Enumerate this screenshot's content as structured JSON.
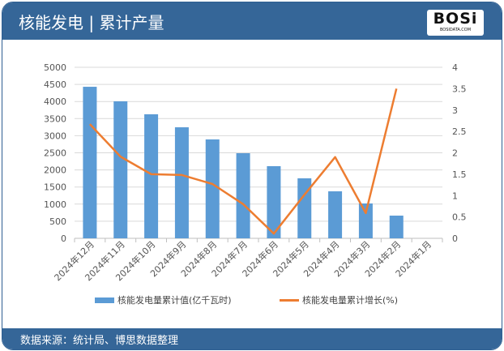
{
  "header": {
    "title": "核能发电 | 累计产量",
    "logo_text": "BOSi",
    "logo_subtext": "BOSIDATA.COM"
  },
  "footer": {
    "source": "数据来源：统计局、博思数据整理"
  },
  "colors": {
    "bar": "#5b9bd5",
    "line": "#ed7d31",
    "header": "#356698"
  },
  "chart_data": {
    "type": "bar+line",
    "categories": [
      "2024年12月",
      "2024年11月",
      "2024年10月",
      "2024年9月",
      "2024年8月",
      "2024年7月",
      "2024年6月",
      "2024年5月",
      "2024年4月",
      "2024年3月",
      "2024年2月",
      "2024年1月"
    ],
    "series": [
      {
        "name": "核能发电量累计值(亿千瓦时)",
        "type": "bar",
        "axis": "left",
        "values": [
          4430,
          4005,
          3626,
          3246,
          2891,
          2488,
          2109,
          1754,
          1374,
          1019,
          664,
          null
        ]
      },
      {
        "name": "核能发电量累计增长(%)",
        "type": "line",
        "axis": "right",
        "values": [
          2.67,
          1.91,
          1.5,
          1.48,
          1.27,
          0.8,
          0.11,
          1.02,
          1.9,
          0.59,
          3.5,
          null
        ]
      }
    ],
    "ylim_left": [
      0,
      5000
    ],
    "yticks_left": [
      "0",
      "500",
      "1000",
      "1500",
      "2000",
      "2500",
      "3000",
      "3500",
      "4000",
      "4500",
      "5000"
    ],
    "ylim_right": [
      0,
      4
    ],
    "yticks_right": [
      "0",
      "0.5",
      "1",
      "1.5",
      "2",
      "2.5",
      "3",
      "3.5",
      "4"
    ],
    "grid": true,
    "legend_position": "bottom"
  }
}
